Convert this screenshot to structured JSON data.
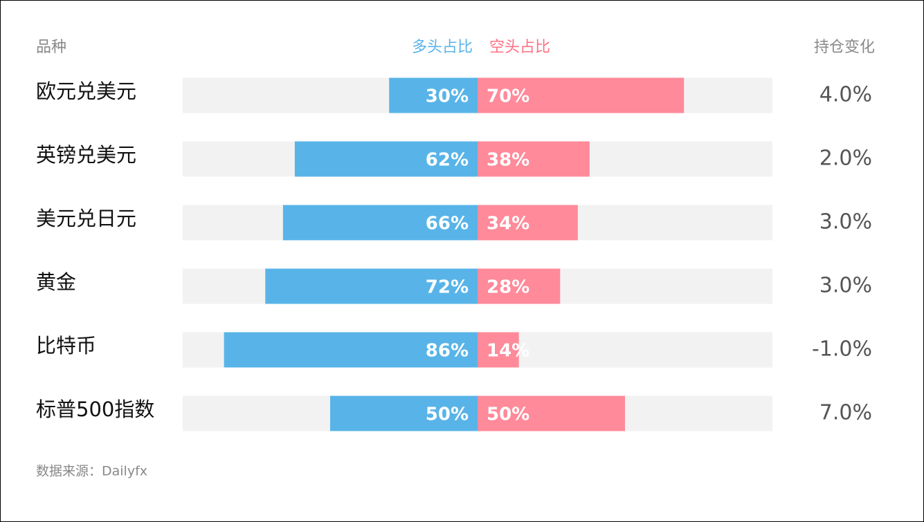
{
  "chart_data": {
    "type": "diverging_bar",
    "category_header": "品种",
    "categories": [
      "欧元兑美元",
      "英镑兑美元",
      "美元兑日元",
      "黄金",
      "比特币",
      "标普500指数"
    ],
    "series": [
      {
        "name": "多头占比",
        "color": "#58b4e8",
        "values": [
          30,
          62,
          66,
          72,
          86,
          50
        ],
        "value_labels": [
          "30%",
          "62%",
          "66%",
          "72%",
          "86%",
          "50%"
        ]
      },
      {
        "name": "空头占比",
        "color": "#ff8a9a",
        "values": [
          70,
          38,
          34,
          28,
          14,
          50
        ],
        "value_labels": [
          "70%",
          "38%",
          "34%",
          "28%",
          "14%",
          "50%"
        ]
      }
    ],
    "change": {
      "name": "持仓变化",
      "values": [
        4.0,
        2.0,
        3.0,
        3.0,
        -1.0,
        7.0
      ],
      "value_labels": [
        "4.0%",
        "2.0%",
        "3.0%",
        "3.0%",
        "-1.0%",
        "7.0%"
      ]
    },
    "xlim": [
      0,
      100
    ],
    "source": "数据来源：Dailyfx"
  }
}
